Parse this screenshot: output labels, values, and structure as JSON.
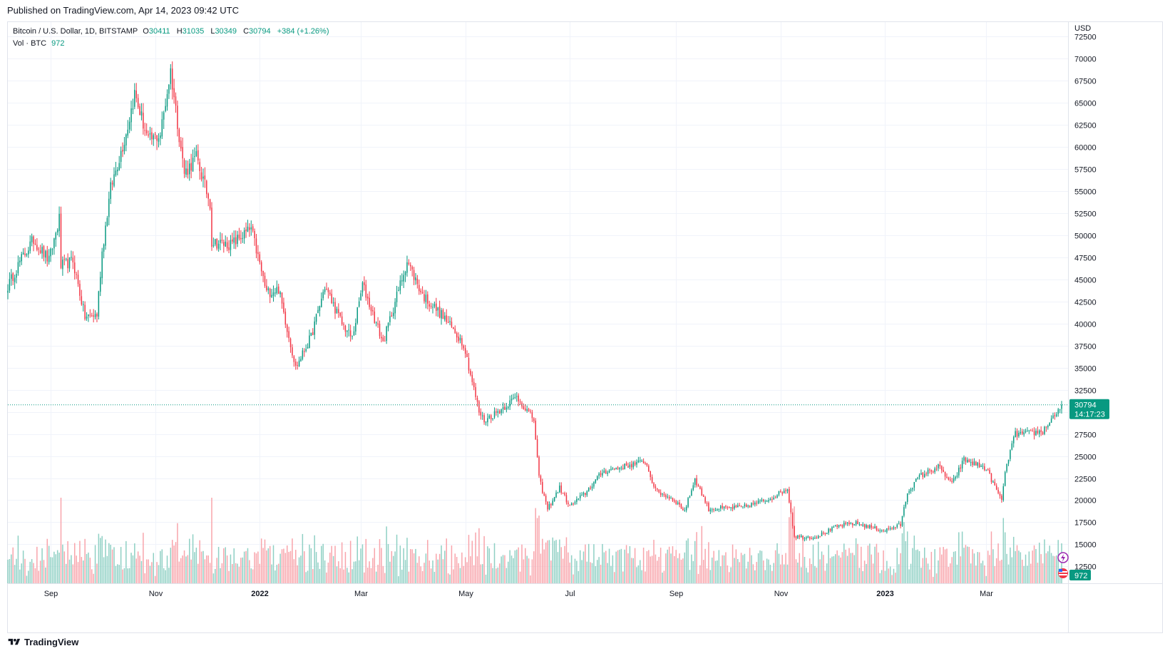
{
  "header": {
    "published": "Published on TradingView.com, Apr 14, 2023 09:42 UTC"
  },
  "legend": {
    "symbol": "Bitcoin / U.S. Dollar, 1D, BITSTAMP",
    "open_key": "O",
    "open": "30411",
    "high_key": "H",
    "high": "31035",
    "low_key": "L",
    "low": "30349",
    "close_key": "C",
    "close": "30794",
    "change": "+384 (+1.26%)",
    "volume_label": "Vol · BTC",
    "volume_value": "972"
  },
  "footer": {
    "brand": "TradingView"
  },
  "colors": {
    "up": "#089981",
    "down": "#f23645",
    "up_volume": "#8fd0c4",
    "down_volume": "#f8a4ab",
    "grid": "#f0f3fa"
  },
  "chart_data": {
    "type": "candlestick",
    "currency": "USD",
    "y_ticks": [
      12500,
      15000,
      17500,
      20000,
      22500,
      25000,
      27500,
      30000,
      32500,
      35000,
      37500,
      40000,
      42500,
      45000,
      47500,
      50000,
      52500,
      55000,
      57500,
      60000,
      62500,
      65000,
      67500,
      70000,
      72500
    ],
    "ylim": [
      10600,
      74100
    ],
    "x_labels": [
      {
        "date": "2021-09-01",
        "label": "Sep"
      },
      {
        "date": "2021-11-01",
        "label": "Nov"
      },
      {
        "date": "2022-01-01",
        "label": "2022"
      },
      {
        "date": "2022-03-01",
        "label": "Mar"
      },
      {
        "date": "2022-05-01",
        "label": "May"
      },
      {
        "date": "2022-07-01",
        "label": "Jul"
      },
      {
        "date": "2022-09-01",
        "label": "Sep"
      },
      {
        "date": "2022-11-01",
        "label": "Nov"
      },
      {
        "date": "2023-01-01",
        "label": "2023"
      },
      {
        "date": "2023-03-01",
        "label": "Mar"
      }
    ],
    "x_range": [
      "2021-08-07",
      "2023-04-14"
    ],
    "last_price": 30794,
    "countdown": "14:17:23",
    "last_volume": "972",
    "price_path": [
      [
        "2021-08-07",
        44200
      ],
      [
        "2021-08-14",
        47000
      ],
      [
        "2021-08-22",
        49500
      ],
      [
        "2021-08-31",
        47100
      ],
      [
        "2021-09-06",
        51800
      ],
      [
        "2021-09-07",
        46500
      ],
      [
        "2021-09-14",
        47100
      ],
      [
        "2021-09-21",
        40700
      ],
      [
        "2021-09-28",
        41000
      ],
      [
        "2021-10-01",
        48100
      ],
      [
        "2021-10-06",
        55300
      ],
      [
        "2021-10-15",
        61500
      ],
      [
        "2021-10-20",
        66000
      ],
      [
        "2021-10-28",
        60600
      ],
      [
        "2021-11-04",
        61400
      ],
      [
        "2021-11-10",
        68600
      ],
      [
        "2021-11-18",
        57000
      ],
      [
        "2021-11-25",
        58800
      ],
      [
        "2021-12-03",
        53600
      ],
      [
        "2021-12-04",
        49200
      ],
      [
        "2021-12-15",
        48900
      ],
      [
        "2021-12-27",
        50700
      ],
      [
        "2022-01-05",
        43500
      ],
      [
        "2022-01-12",
        43900
      ],
      [
        "2022-01-22",
        35000
      ],
      [
        "2022-01-31",
        38500
      ],
      [
        "2022-02-08",
        44200
      ],
      [
        "2022-02-18",
        40000
      ],
      [
        "2022-02-24",
        38300
      ],
      [
        "2022-03-02",
        44400
      ],
      [
        "2022-03-14",
        37800
      ],
      [
        "2022-03-28",
        47100
      ],
      [
        "2022-04-06",
        43200
      ],
      [
        "2022-04-18",
        40800
      ],
      [
        "2022-04-30",
        37700
      ],
      [
        "2022-05-09",
        30000
      ],
      [
        "2022-05-12",
        29000
      ],
      [
        "2022-05-22",
        30300
      ],
      [
        "2022-05-31",
        31700
      ],
      [
        "2022-06-10",
        29100
      ],
      [
        "2022-06-13",
        22500
      ],
      [
        "2022-06-18",
        19000
      ],
      [
        "2022-06-25",
        21400
      ],
      [
        "2022-07-01",
        19300
      ],
      [
        "2022-07-10",
        20800
      ],
      [
        "2022-07-20",
        23200
      ],
      [
        "2022-07-30",
        23700
      ],
      [
        "2022-08-14",
        24400
      ],
      [
        "2022-08-20",
        21100
      ],
      [
        "2022-08-31",
        20000
      ],
      [
        "2022-09-06",
        18800
      ],
      [
        "2022-09-12",
        22400
      ],
      [
        "2022-09-20",
        19000
      ],
      [
        "2022-10-10",
        19200
      ],
      [
        "2022-10-25",
        20100
      ],
      [
        "2022-11-05",
        21300
      ],
      [
        "2022-11-09",
        15900
      ],
      [
        "2022-11-21",
        15800
      ],
      [
        "2022-12-05",
        17100
      ],
      [
        "2022-12-15",
        17400
      ],
      [
        "2022-12-31",
        16550
      ],
      [
        "2023-01-10",
        17200
      ],
      [
        "2023-01-14",
        20900
      ],
      [
        "2023-01-21",
        22700
      ],
      [
        "2023-02-01",
        23800
      ],
      [
        "2023-02-09",
        21800
      ],
      [
        "2023-02-16",
        24600
      ],
      [
        "2023-03-01",
        23600
      ],
      [
        "2023-03-09",
        20300
      ],
      [
        "2023-03-10",
        20200
      ],
      [
        "2023-03-13",
        24200
      ],
      [
        "2023-03-18",
        27500
      ],
      [
        "2023-03-24",
        27500
      ],
      [
        "2023-04-03",
        27800
      ],
      [
        "2023-04-10",
        29700
      ],
      [
        "2023-04-13",
        30400
      ],
      [
        "2023-04-14",
        30794
      ]
    ]
  }
}
